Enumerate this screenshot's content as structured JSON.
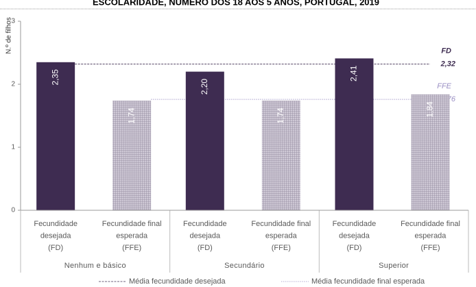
{
  "chart_data": {
    "type": "bar",
    "title": "ESCOLARIDADE, NÚMERO DOS 18 AOS 5 ANOS, PORTUGAL, 2019",
    "y_label": "N.º de filhos",
    "categories": [
      "Nenhum e básico",
      "Secundário",
      "Superior"
    ],
    "series": [
      {
        "name": "Fecundidade desejada (FD)",
        "label_lines": [
          "Fecundidade",
          "desejada",
          "(FD)"
        ],
        "color": "#3e2c51",
        "values": [
          2.35,
          2.2,
          2.41
        ],
        "value_labels": [
          "2,35",
          "2,20",
          "2,41"
        ]
      },
      {
        "name": "Fecundidade final esperada (FFE)",
        "label_lines": [
          "Fecundidade final",
          "esperada",
          "(FFE)"
        ],
        "color": "#a89fb4",
        "values": [
          1.74,
          1.74,
          1.84
        ],
        "value_labels": [
          "1,74",
          "1,74",
          "1,84"
        ]
      }
    ],
    "reference_lines": [
      {
        "name": "Média fecundidade desejada",
        "short": "FD",
        "value": 2.32,
        "value_label": "2,32",
        "color": "#3e2c51"
      },
      {
        "name": "Média fecundidade final esperada",
        "short": "FFE",
        "value": 1.76,
        "value_label": "1,76",
        "color": "#9a8fc4"
      }
    ],
    "ylim": [
      0,
      3
    ],
    "yticks": [
      0,
      1,
      2,
      3
    ]
  }
}
